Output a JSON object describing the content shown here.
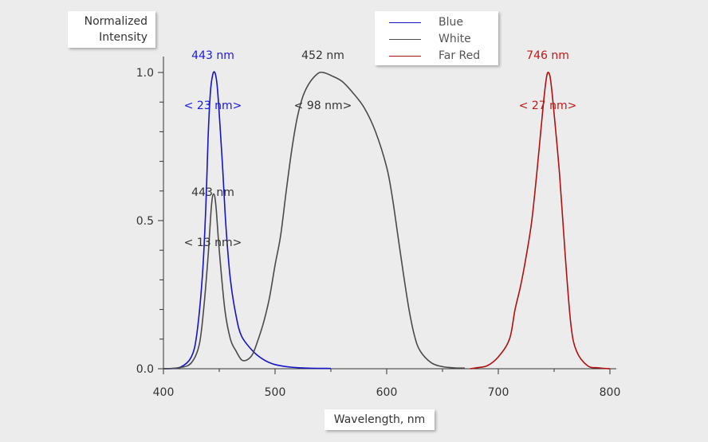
{
  "chart_data": {
    "type": "line",
    "ylabel": "Normalized Intensity",
    "xlabel": "Wavelength, nm",
    "xlim": [
      400,
      800
    ],
    "ylim": [
      0,
      1
    ],
    "x_ticks": [
      400,
      500,
      600,
      700,
      800
    ],
    "y_ticks": [
      0.0,
      0.5,
      1.0
    ],
    "y_tick_labels": [
      "0.0",
      "0.5",
      "1.0"
    ],
    "x_tick_labels": [
      "400",
      "500",
      "600",
      "700",
      "800"
    ],
    "grid": false,
    "legend_position": "top-right",
    "series": [
      {
        "name": "Blue",
        "color": "#1414c8",
        "points": [
          [
            400,
            0.0
          ],
          [
            415,
            0.005
          ],
          [
            425,
            0.04
          ],
          [
            430,
            0.12
          ],
          [
            435,
            0.32
          ],
          [
            438,
            0.55
          ],
          [
            440,
            0.78
          ],
          [
            442,
            0.93
          ],
          [
            444,
            0.99
          ],
          [
            446,
            1.0
          ],
          [
            448,
            0.96
          ],
          [
            450,
            0.86
          ],
          [
            453,
            0.68
          ],
          [
            456,
            0.48
          ],
          [
            460,
            0.3
          ],
          [
            465,
            0.18
          ],
          [
            470,
            0.11
          ],
          [
            480,
            0.06
          ],
          [
            490,
            0.03
          ],
          [
            500,
            0.014
          ],
          [
            515,
            0.005
          ],
          [
            530,
            0.002
          ],
          [
            550,
            0.001
          ]
        ]
      },
      {
        "name": "White",
        "color": "#4a4a4a",
        "points": [
          [
            400,
            0.0
          ],
          [
            415,
            0.004
          ],
          [
            425,
            0.02
          ],
          [
            432,
            0.08
          ],
          [
            436,
            0.2
          ],
          [
            440,
            0.38
          ],
          [
            443,
            0.55
          ],
          [
            445,
            0.59
          ],
          [
            447,
            0.55
          ],
          [
            450,
            0.4
          ],
          [
            455,
            0.2
          ],
          [
            460,
            0.1
          ],
          [
            465,
            0.06
          ],
          [
            470,
            0.03
          ],
          [
            475,
            0.03
          ],
          [
            480,
            0.05
          ],
          [
            485,
            0.1
          ],
          [
            490,
            0.16
          ],
          [
            495,
            0.24
          ],
          [
            500,
            0.35
          ],
          [
            505,
            0.45
          ],
          [
            510,
            0.6
          ],
          [
            515,
            0.74
          ],
          [
            520,
            0.85
          ],
          [
            525,
            0.92
          ],
          [
            530,
            0.96
          ],
          [
            535,
            0.985
          ],
          [
            540,
            1.0
          ],
          [
            545,
            0.998
          ],
          [
            550,
            0.99
          ],
          [
            560,
            0.97
          ],
          [
            570,
            0.93
          ],
          [
            580,
            0.88
          ],
          [
            590,
            0.8
          ],
          [
            600,
            0.68
          ],
          [
            605,
            0.58
          ],
          [
            610,
            0.45
          ],
          [
            615,
            0.32
          ],
          [
            620,
            0.2
          ],
          [
            625,
            0.11
          ],
          [
            630,
            0.06
          ],
          [
            640,
            0.02
          ],
          [
            650,
            0.007
          ],
          [
            660,
            0.003
          ],
          [
            670,
            0.002
          ]
        ]
      },
      {
        "name": "Far Red",
        "color": "#b01010",
        "points": [
          [
            675,
            0.0
          ],
          [
            680,
            0.003
          ],
          [
            690,
            0.01
          ],
          [
            700,
            0.04
          ],
          [
            710,
            0.1
          ],
          [
            715,
            0.2
          ],
          [
            720,
            0.28
          ],
          [
            725,
            0.38
          ],
          [
            730,
            0.5
          ],
          [
            735,
            0.68
          ],
          [
            740,
            0.88
          ],
          [
            743,
            0.98
          ],
          [
            745,
            1.0
          ],
          [
            747,
            0.97
          ],
          [
            750,
            0.86
          ],
          [
            755,
            0.65
          ],
          [
            760,
            0.38
          ],
          [
            765,
            0.15
          ],
          [
            770,
            0.06
          ],
          [
            780,
            0.01
          ],
          [
            790,
            0.003
          ],
          [
            800,
            0.0
          ]
        ]
      }
    ],
    "annotations": [
      {
        "text_line1": "443 nm",
        "text_line2": "< 23 nm>",
        "color": "#1a1ae0"
      },
      {
        "text_line1": "452 nm",
        "text_line2": "< 98 nm>",
        "color": "#333333"
      },
      {
        "text_line1": "443 nm",
        "text_line2": "< 13 nm>",
        "color": "#333333"
      },
      {
        "text_line1": "746 nm",
        "text_line2": "< 27 nm>",
        "color": "#c01818"
      }
    ]
  }
}
